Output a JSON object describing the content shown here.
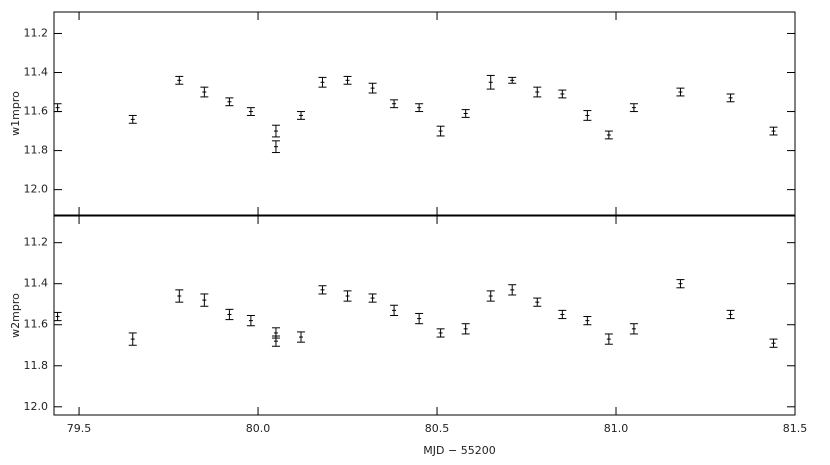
{
  "chart_data": [
    {
      "type": "errorbar",
      "ylabel": "w1mpro",
      "color": "#000000",
      "invert_y": true,
      "ylim": [
        11.09,
        12.13
      ],
      "yticks": [
        11.2,
        11.4,
        11.6,
        11.8,
        {
          "value": 12,
          "label": "12.0"
        }
      ],
      "xlim": [
        79.43,
        81.5
      ],
      "x": [
        79.44,
        79.65,
        79.78,
        79.85,
        79.92,
        79.98,
        80.05,
        80.05,
        80.12,
        80.18,
        80.25,
        80.32,
        80.38,
        80.45,
        80.51,
        80.58,
        80.65,
        80.71,
        80.78,
        80.85,
        80.92,
        80.98,
        81.05,
        81.18,
        81.32,
        81.44
      ],
      "values": [
        11.58,
        11.64,
        11.44,
        11.5,
        11.55,
        11.6,
        11.7,
        11.78,
        11.62,
        11.45,
        11.44,
        11.48,
        11.56,
        11.58,
        11.7,
        11.61,
        11.45,
        11.44,
        11.5,
        11.51,
        11.62,
        11.72,
        11.58,
        11.5,
        11.53,
        11.7
      ],
      "errors": [
        0.02,
        0.02,
        0.02,
        0.025,
        0.02,
        0.02,
        0.03,
        0.03,
        0.02,
        0.025,
        0.02,
        0.025,
        0.02,
        0.02,
        0.025,
        0.02,
        0.035,
        0.015,
        0.025,
        0.02,
        0.025,
        0.02,
        0.02,
        0.02,
        0.02,
        0.02
      ]
    },
    {
      "type": "errorbar",
      "ylabel": "w2mpro",
      "xlabel": "MJD − 55200",
      "color": "#000000",
      "invert_y": true,
      "ylim": [
        11.07,
        12.04
      ],
      "yticks": [
        11.2,
        11.4,
        11.6,
        11.8,
        {
          "value": 12,
          "label": "12.0"
        }
      ],
      "xlim": [
        79.43,
        81.5
      ],
      "xticks": [
        79.5,
        {
          "value": 80,
          "label": "80.0"
        },
        80.5,
        {
          "value": 81,
          "label": "81.0"
        },
        81.5
      ],
      "x": [
        79.44,
        79.65,
        79.78,
        79.85,
        79.92,
        79.98,
        80.05,
        80.05,
        80.12,
        80.18,
        80.25,
        80.32,
        80.38,
        80.45,
        80.51,
        80.58,
        80.65,
        80.71,
        80.78,
        80.85,
        80.92,
        80.98,
        81.05,
        81.18,
        81.32,
        81.44
      ],
      "values": [
        11.56,
        11.67,
        11.46,
        11.48,
        11.55,
        11.58,
        11.64,
        11.68,
        11.66,
        11.43,
        11.46,
        11.47,
        11.53,
        11.57,
        11.64,
        11.62,
        11.46,
        11.43,
        11.49,
        11.55,
        11.58,
        11.67,
        11.62,
        11.4,
        11.55,
        11.69
      ],
      "errors": [
        0.02,
        0.03,
        0.03,
        0.03,
        0.025,
        0.025,
        0.025,
        0.025,
        0.025,
        0.02,
        0.025,
        0.02,
        0.025,
        0.025,
        0.02,
        0.025,
        0.025,
        0.025,
        0.02,
        0.02,
        0.02,
        0.025,
        0.025,
        0.02,
        0.02,
        0.02
      ]
    }
  ]
}
